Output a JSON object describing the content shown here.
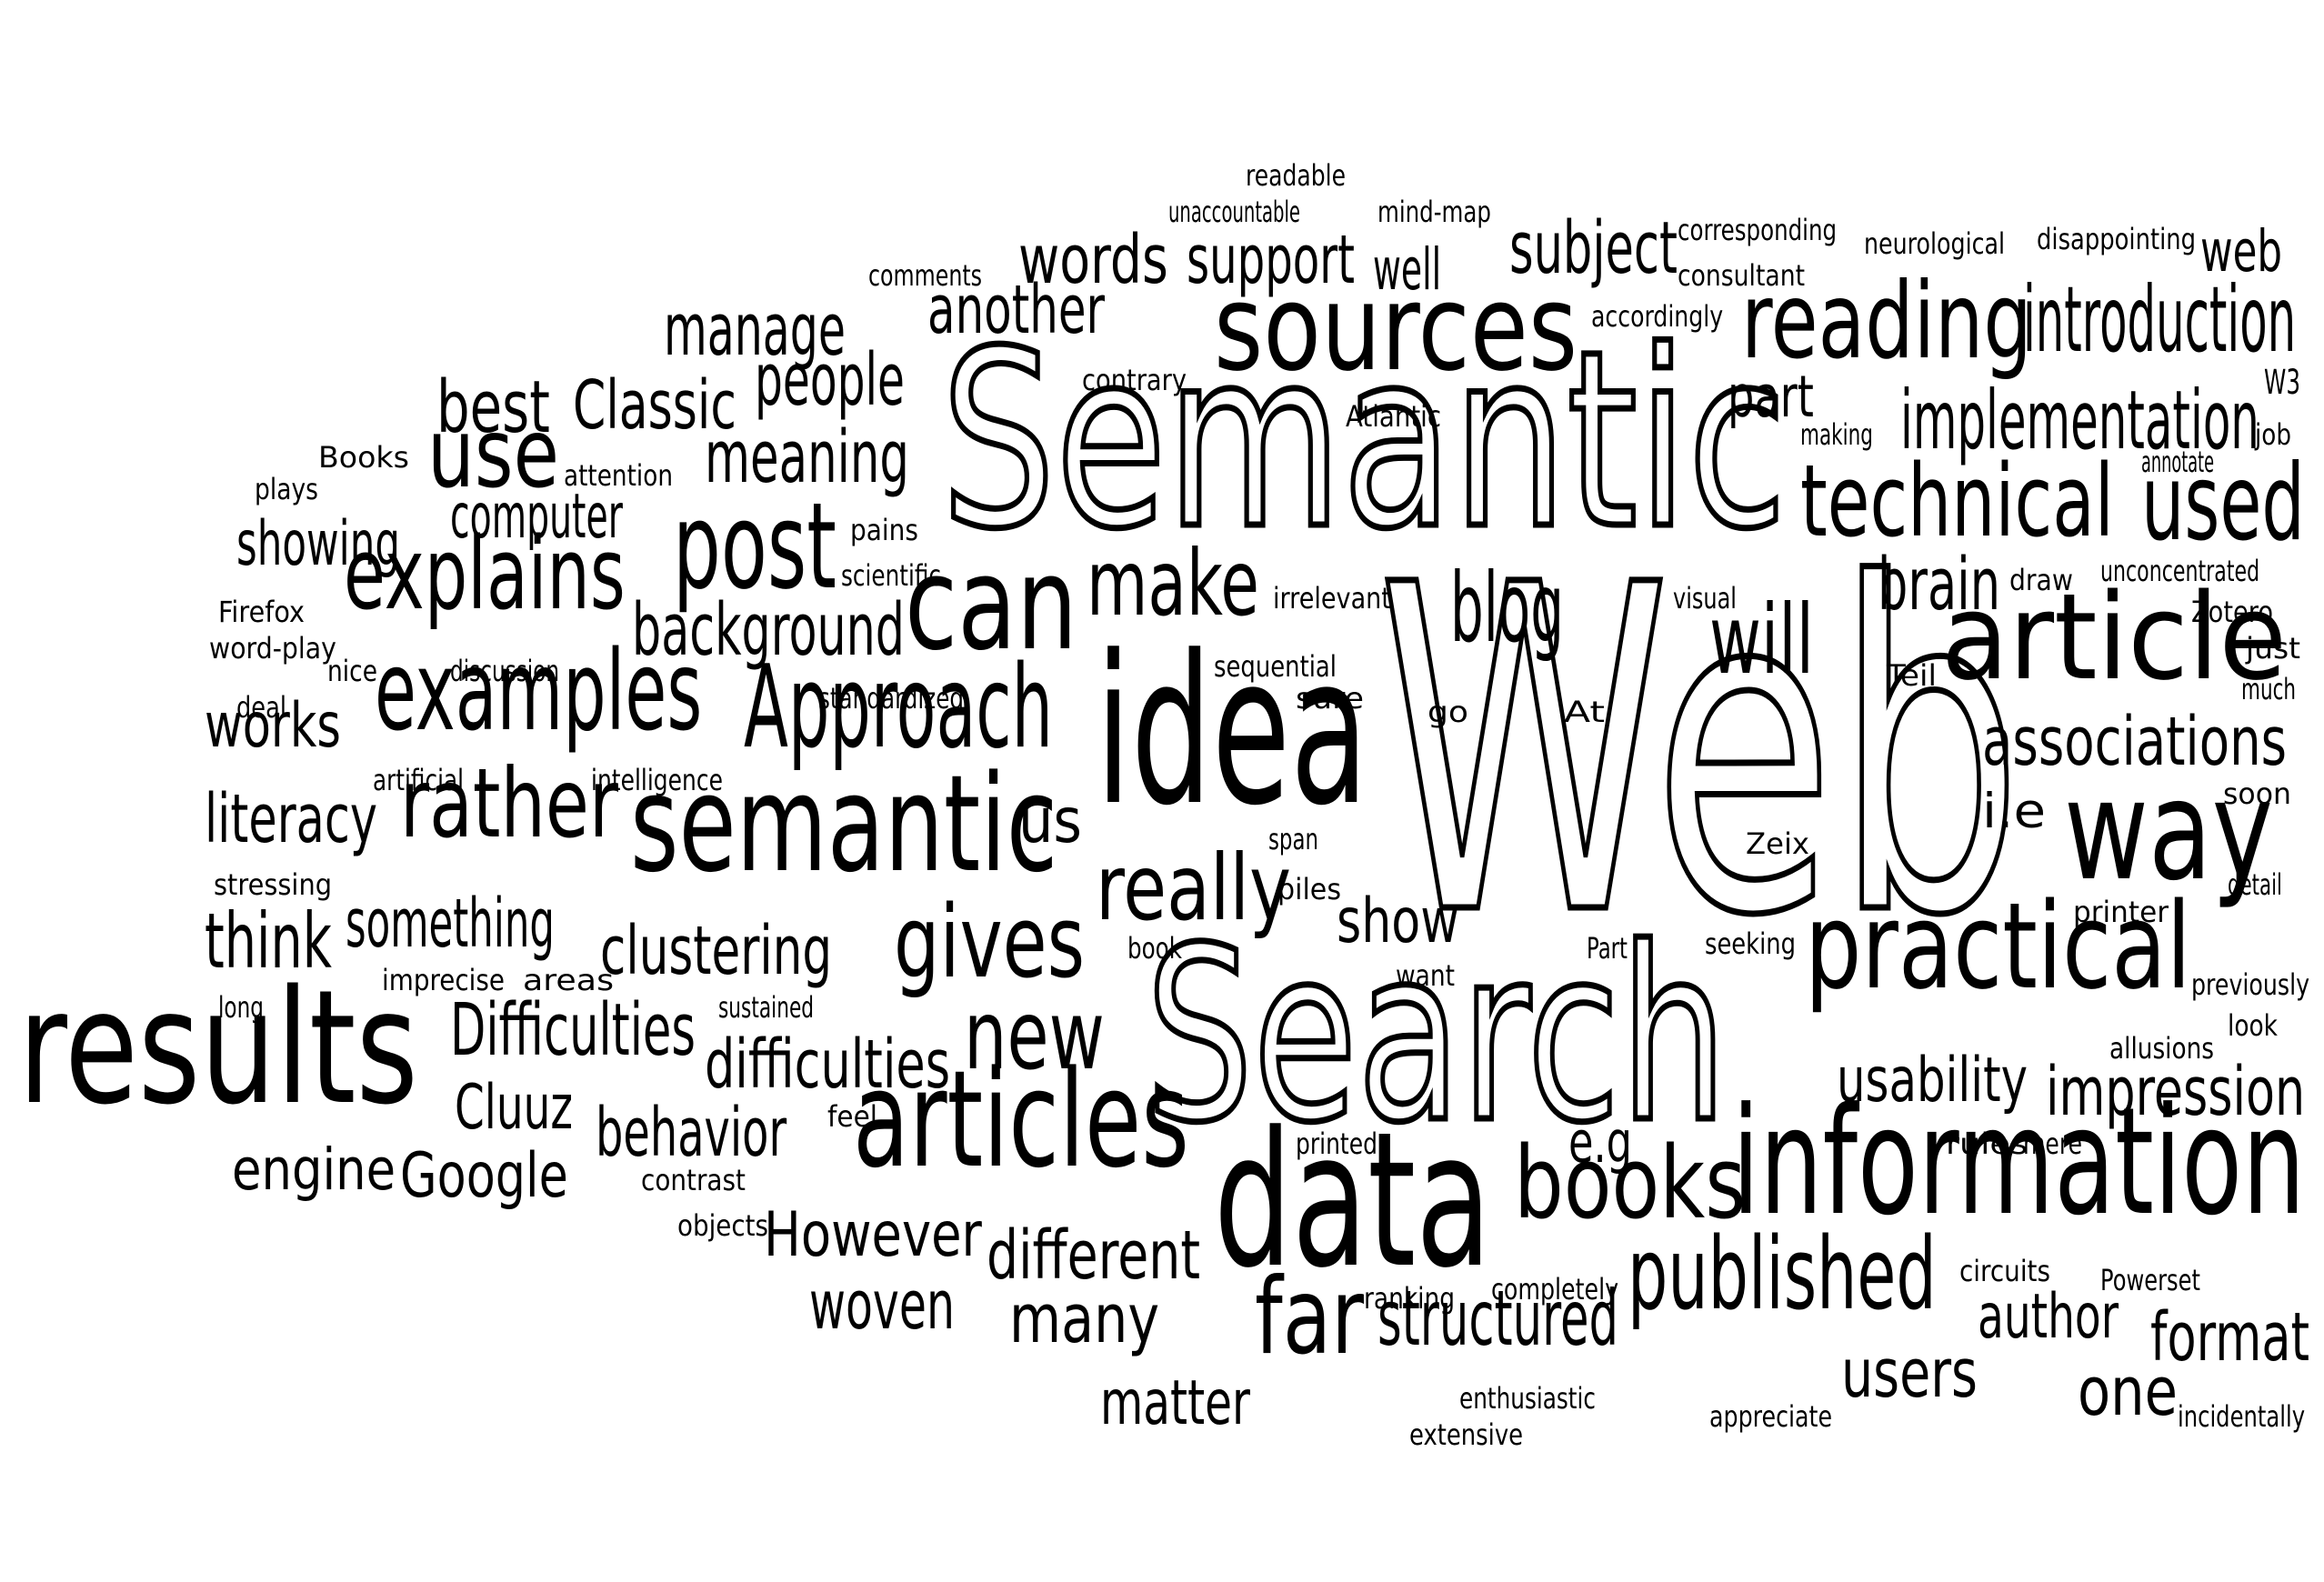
{
  "colors": {
    "background": "#ffffff",
    "text": "#000000"
  },
  "words": [
    "Semantic",
    "Web",
    "Search",
    "idea",
    "data",
    "results",
    "information",
    "sources",
    "semantic",
    "practical",
    "articles",
    "article",
    "can",
    "published",
    "way",
    "explains",
    "examples",
    "Approach",
    "post",
    "books",
    "technical",
    "reading",
    "use",
    "gives",
    "rather",
    "new",
    "really",
    "used",
    "make",
    "blog",
    "will",
    "far",
    "structured",
    "introduction",
    "implementation",
    "associations",
    "impression",
    "support",
    "words",
    "subject",
    "another",
    "manage",
    "people",
    "meaning",
    "computer",
    "showing",
    "best",
    "Classic",
    "background",
    "works",
    "literacy",
    "something",
    "think",
    "clustering",
    "Difficulties",
    "difficulties",
    "usability",
    "brain",
    "part",
    "Cluuz",
    "behavior",
    "engine",
    "Google",
    "However",
    "different",
    "woven",
    "many",
    "matter",
    "author",
    "format",
    "users",
    "one",
    "show",
    "us",
    "e.g",
    "i.e",
    "web",
    "well",
    "readable",
    "unaccountable",
    "mind-map",
    "corresponding",
    "neurological",
    "disappointing",
    "comments",
    "consultant",
    "accordingly",
    "contrary",
    "Atlantic",
    "making",
    "W3",
    "job",
    "annotate",
    "Books",
    "plays",
    "attention",
    "pains",
    "scientific",
    "irrelevant",
    "visual",
    "draw",
    "unconcentrated",
    "Zotero",
    "just",
    "Firefox",
    "word-play",
    "nice",
    "discussion",
    "deal",
    "sequential",
    "sure",
    "At",
    "go",
    "Teil",
    "much",
    "standardized",
    "artificial",
    "intelligence",
    "soon",
    "Zeix",
    "stressing",
    "span",
    "piles",
    "detail",
    "printer",
    "book",
    "Part",
    "seeking",
    "imprecise",
    "areas",
    "want",
    "long",
    "sustained",
    "previously",
    "look",
    "allusions",
    "feel",
    "printed",
    "rules",
    "mere",
    "contrast",
    "objects",
    "circuits",
    "Powerset",
    "ranking",
    "completely",
    "enthusiastic",
    "extensive",
    "appreciate",
    "incidentally"
  ]
}
